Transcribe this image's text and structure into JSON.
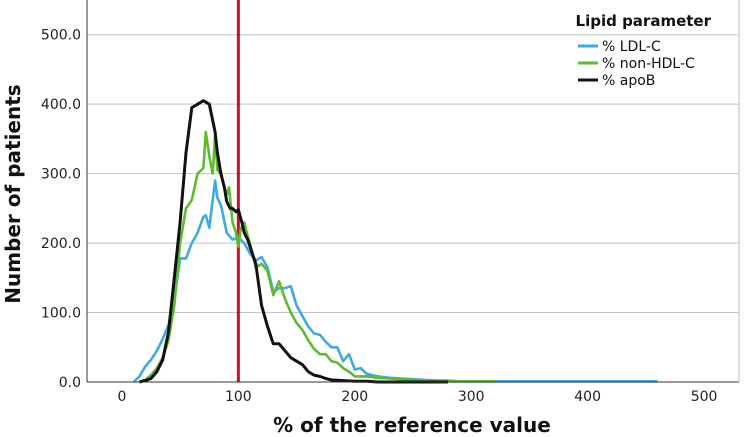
{
  "chart_data": {
    "type": "line",
    "title": "",
    "xlabel": "% of the reference  value",
    "ylabel": "Number of patients",
    "xlim": [
      -30,
      530
    ],
    "ylim": [
      0,
      550
    ],
    "xticks": [
      "0",
      "100",
      "200",
      "300",
      "400",
      "500"
    ],
    "yticks": [
      "0.0",
      "100.0",
      "200.0",
      "300.0",
      "400.0",
      "500.0"
    ],
    "grid": "horizontal",
    "legend": {
      "title": "Lipid parameter",
      "placement": "top-right"
    },
    "reference_line": {
      "x": 100,
      "color": "#c8102e"
    },
    "series": [
      {
        "name": "% LDL-C",
        "color": "#3fa9e8",
        "x": [
          10,
          15,
          20,
          25,
          30,
          35,
          40,
          45,
          50,
          55,
          60,
          65,
          70,
          72,
          75,
          80,
          82,
          85,
          90,
          95,
          100,
          105,
          110,
          115,
          120,
          125,
          130,
          135,
          140,
          145,
          150,
          155,
          160,
          165,
          170,
          175,
          180,
          185,
          190,
          195,
          200,
          205,
          210,
          215,
          220,
          230,
          240,
          250,
          260,
          270,
          280,
          290,
          300,
          320,
          340,
          360,
          380,
          400,
          420,
          440,
          460
        ],
        "values": [
          0,
          8,
          22,
          32,
          45,
          62,
          82,
          120,
          178,
          178,
          200,
          215,
          238,
          240,
          222,
          290,
          265,
          255,
          215,
          205,
          208,
          200,
          185,
          175,
          180,
          165,
          130,
          135,
          135,
          138,
          110,
          95,
          80,
          70,
          68,
          58,
          50,
          50,
          30,
          40,
          18,
          20,
          12,
          10,
          8,
          6,
          5,
          4,
          3,
          2,
          2,
          1,
          1,
          1,
          1,
          1,
          1,
          1,
          1,
          1,
          1
        ]
      },
      {
        "name": "% non-HDL-C",
        "color": "#5dbb2e",
        "x": [
          15,
          20,
          25,
          30,
          35,
          40,
          45,
          50,
          55,
          60,
          65,
          70,
          72,
          75,
          78,
          80,
          82,
          85,
          88,
          90,
          92,
          95,
          98,
          100,
          102,
          105,
          108,
          110,
          115,
          120,
          125,
          130,
          135,
          140,
          145,
          150,
          155,
          160,
          165,
          170,
          175,
          180,
          185,
          190,
          195,
          200,
          210,
          220,
          230,
          240,
          250,
          260,
          270,
          280,
          300,
          320
        ],
        "values": [
          0,
          3,
          10,
          20,
          35,
          60,
          110,
          200,
          250,
          262,
          300,
          308,
          360,
          325,
          300,
          355,
          305,
          300,
          280,
          270,
          280,
          230,
          215,
          195,
          220,
          230,
          210,
          200,
          165,
          170,
          160,
          125,
          145,
          120,
          100,
          85,
          75,
          60,
          48,
          40,
          40,
          30,
          28,
          20,
          15,
          8,
          8,
          6,
          5,
          4,
          3,
          2,
          2,
          1,
          1,
          1
        ]
      },
      {
        "name": "% apoB",
        "color": "#111111",
        "x": [
          15,
          20,
          25,
          30,
          35,
          40,
          45,
          50,
          55,
          60,
          65,
          70,
          75,
          80,
          82,
          85,
          88,
          90,
          93,
          95,
          98,
          100,
          103,
          105,
          108,
          110,
          115,
          120,
          125,
          130,
          135,
          140,
          145,
          150,
          155,
          160,
          165,
          170,
          175,
          180,
          190,
          200,
          210,
          220,
          240,
          260,
          280
        ],
        "values": [
          0,
          2,
          5,
          15,
          32,
          72,
          150,
          230,
          330,
          395,
          400,
          405,
          400,
          360,
          330,
          300,
          280,
          260,
          250,
          250,
          245,
          248,
          230,
          215,
          205,
          195,
          170,
          110,
          80,
          55,
          55,
          45,
          35,
          30,
          25,
          15,
          10,
          8,
          5,
          3,
          2,
          1,
          1,
          0,
          0,
          0,
          0
        ]
      }
    ]
  }
}
